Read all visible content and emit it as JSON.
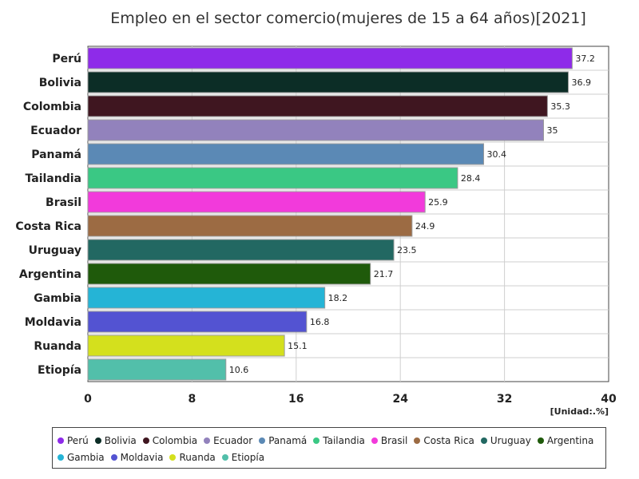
{
  "chart_data": {
    "type": "bar",
    "orientation": "horizontal",
    "title": "Empleo en el sector comercio(mujeres de 15 a 64 años)[2021]",
    "unit_label": "[Unidad:.%]",
    "categories": [
      "Perú",
      "Bolivia",
      "Colombia",
      "Ecuador",
      "Panamá",
      "Tailandia",
      "Brasil",
      "Costa Rica",
      "Uruguay",
      "Argentina",
      "Gambia",
      "Moldavia",
      "Ruanda",
      "Etiopía"
    ],
    "values": [
      37.2,
      36.9,
      35.3,
      35,
      30.4,
      28.4,
      25.9,
      24.9,
      23.5,
      21.7,
      18.2,
      16.8,
      15.1,
      10.6
    ],
    "value_labels": [
      "37.2",
      "36.9",
      "35.3",
      "35",
      "30.4",
      "28.4",
      "25.9",
      "24.9",
      "23.5",
      "21.7",
      "18.2",
      "16.8",
      "15.1",
      "10.6"
    ],
    "colors": [
      "#8e2be9",
      "#0c2d26",
      "#3f1620",
      "#9282bc",
      "#5b89b5",
      "#3ac884",
      "#f23adb",
      "#9c6b43",
      "#226862",
      "#1f5a0b",
      "#25b4d6",
      "#5353d2",
      "#d4e01d",
      "#52bfaa"
    ],
    "xlim": [
      0,
      40
    ],
    "xticks": [
      0,
      8,
      16,
      24,
      32,
      40
    ],
    "grid": true,
    "legend_position": "bottom"
  }
}
